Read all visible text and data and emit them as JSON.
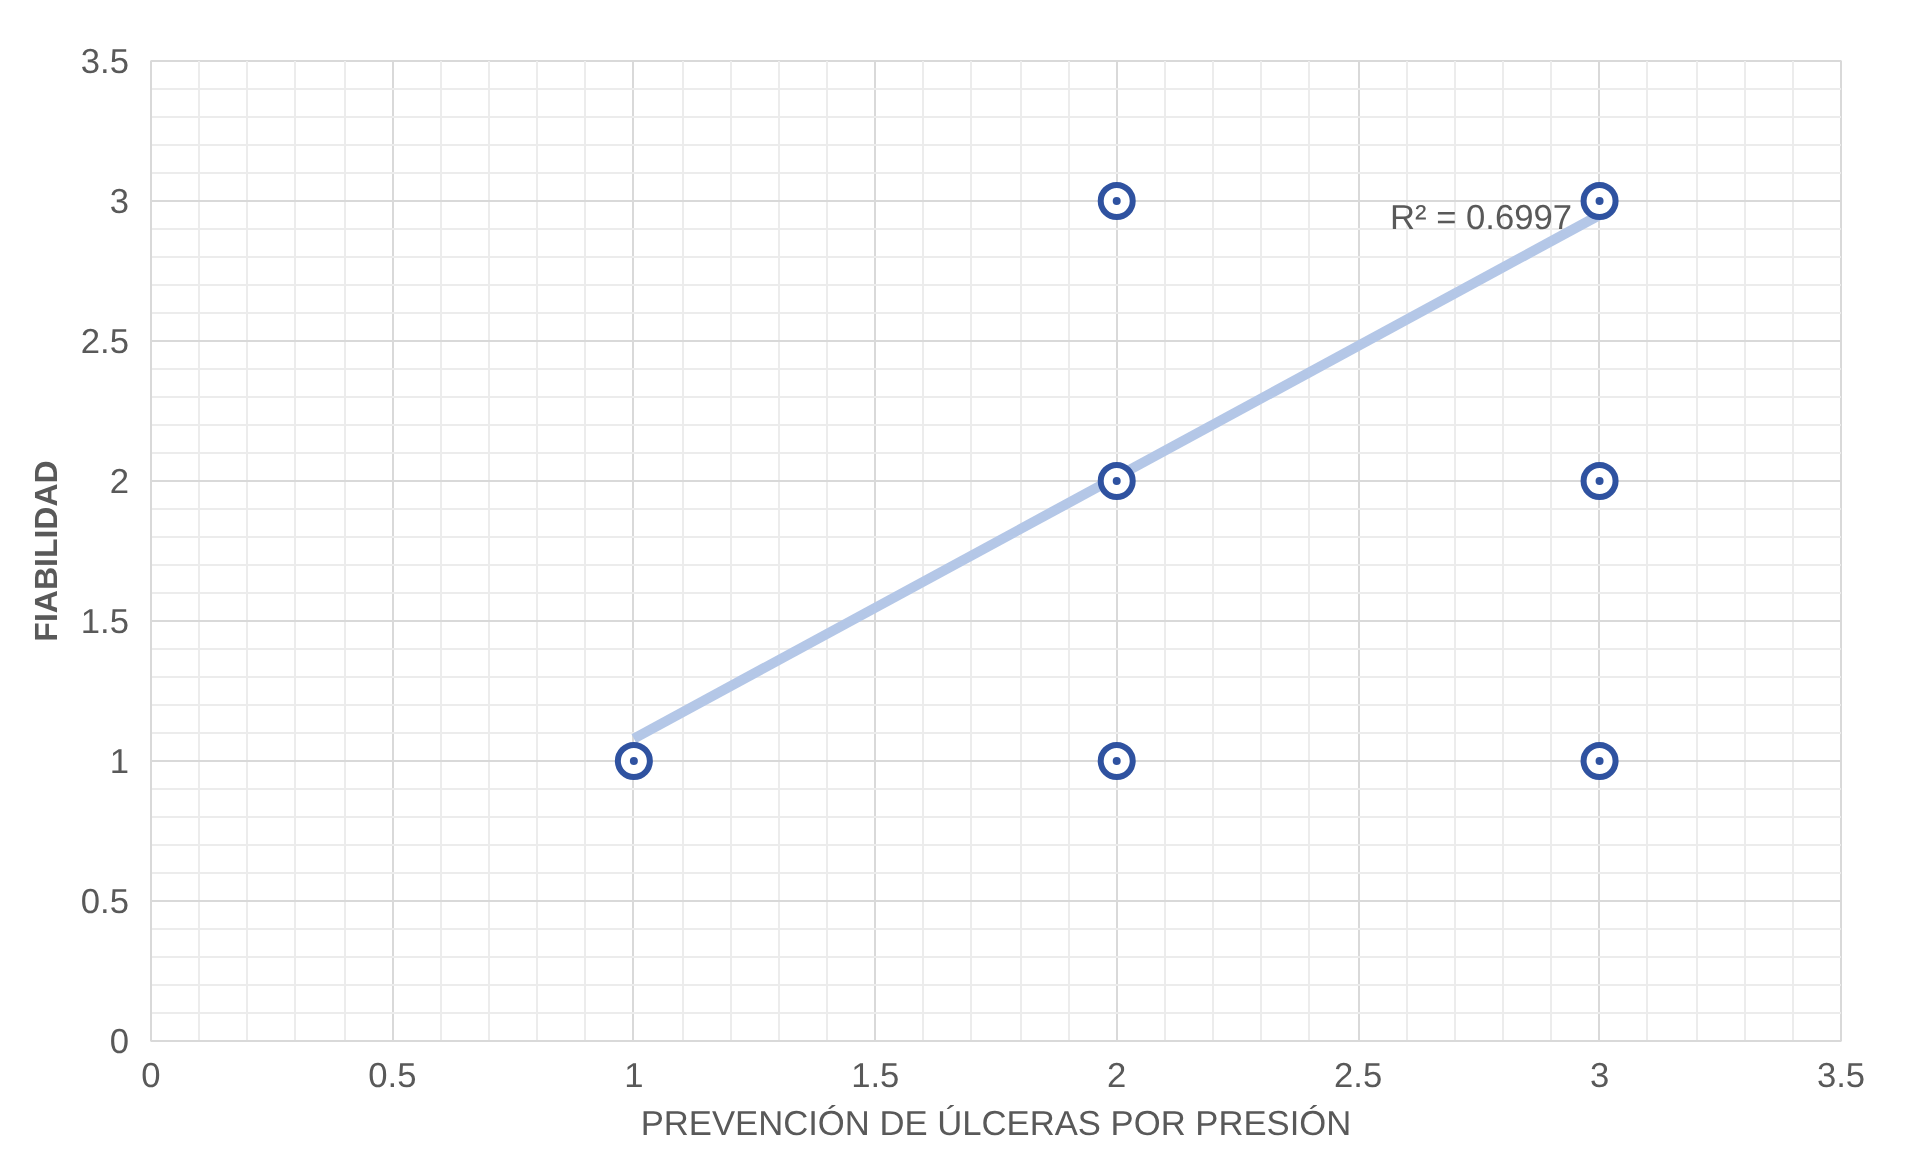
{
  "chart_data": {
    "type": "scatter",
    "xlabel": "PREVENCIÓN DE ÚLCERAS POR PRESIÓN",
    "ylabel": "FIABILIDAD",
    "series": [
      {
        "color": "#2f52a0",
        "x": [
          1,
          2,
          2,
          2,
          3,
          3,
          3
        ],
        "values": [
          1,
          1,
          2,
          3,
          1,
          2,
          3
        ],
        "marker": "circle"
      },
      {
        "type": "line",
        "color": "#b4c7e7",
        "x": [
          1,
          3
        ],
        "values": [
          1.08,
          2.95
        ],
        "marker": "none"
      }
    ],
    "annotations": [
      "R² = 0.6997"
    ],
    "xlim": [
      0,
      3.5
    ],
    "ylim": [
      0,
      3.5
    ],
    "xticks": [
      0,
      0.5,
      1,
      1.5,
      2,
      2.5,
      3,
      3.5
    ],
    "yticks": [
      0,
      0.5,
      1,
      1.5,
      2,
      2.5,
      3,
      3.5
    ],
    "grid": true
  }
}
